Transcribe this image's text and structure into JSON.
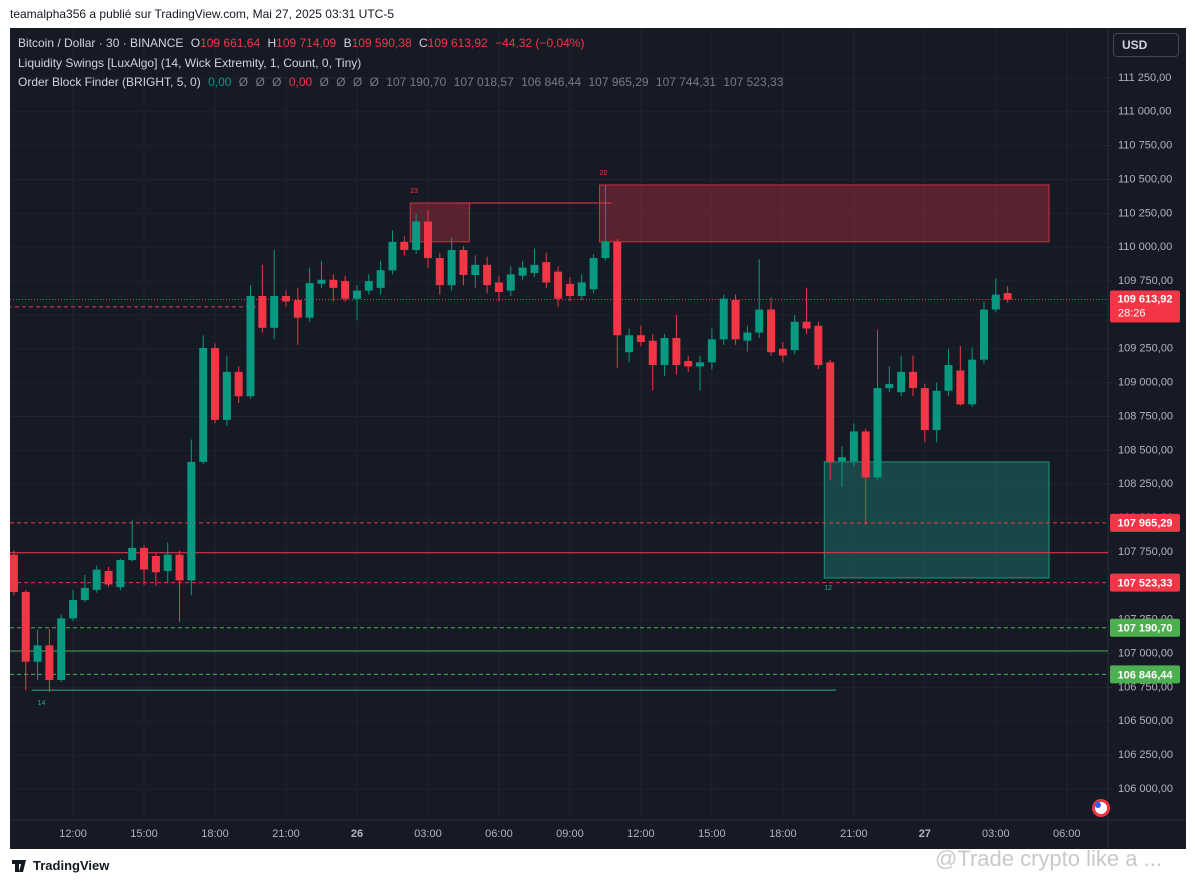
{
  "header": {
    "publisher": "teamalpha356 a publié sur TradingView.com, Mai 27, 2025 03:31 UTC-5",
    "logo": "TradingView",
    "watermark": "@Trade crypto like a ..."
  },
  "chart_data": {
    "type": "candlestick",
    "title": "Bitcoin / Dollar · 30 · BINANCE",
    "ohlc": [
      {
        "key": "O",
        "value": "109 661,64"
      },
      {
        "key": "H",
        "value": "109 714,09"
      },
      {
        "key": "B",
        "value": "109 590,38"
      },
      {
        "key": "C",
        "value": "109 613,92"
      }
    ],
    "change": "−44,32 (−0,04%)",
    "indicators": [
      {
        "name": "Liquidity Swings [LuxAlgo] (14, Wick Extremity, 1, Count, 0, Tiny)"
      },
      {
        "name": "Order Block Finder (BRIGHT, 5, 0)",
        "values": [
          "0,00",
          "Ø",
          "Ø",
          "Ø",
          "0,00",
          "Ø",
          "Ø",
          "Ø",
          "Ø",
          "107 190,70",
          "107 018,57",
          "106 846,44",
          "107 965,29",
          "107 744,31",
          "107 523,33"
        ]
      }
    ],
    "currency": "USD",
    "categories": [
      null,
      null,
      null,
      null,
      null,
      "12:00",
      null,
      null,
      null,
      null,
      null,
      "15:00",
      null,
      null,
      null,
      null,
      null,
      "18:00",
      null,
      null,
      null,
      null,
      null,
      "21:00",
      null,
      null,
      null,
      null,
      null,
      "26",
      null,
      null,
      null,
      null,
      null,
      "03:00",
      null,
      null,
      null,
      null,
      null,
      "06:00",
      null,
      null,
      null,
      null,
      null,
      "09:00",
      null,
      null,
      null,
      null,
      null,
      "12:00",
      null,
      null,
      null,
      null,
      null,
      "15:00",
      null,
      null,
      null,
      null,
      null,
      "18:00",
      null,
      null,
      null,
      null,
      null,
      "21:00",
      null,
      null,
      null,
      null,
      null,
      "27",
      null,
      null,
      null,
      null,
      null,
      "03:00",
      null,
      null,
      null,
      null,
      null,
      "06:00",
      null,
      null,
      null
    ],
    "open": [
      107730,
      107455,
      106940,
      107060,
      106805,
      107260,
      107395,
      107470,
      107610,
      107490,
      107690,
      107780,
      107720,
      107610,
      107730,
      107540,
      108415,
      109256,
      108725,
      109080,
      108900,
      109640,
      109405,
      109640,
      109610,
      109480,
      109730,
      109760,
      109750,
      109620,
      109680,
      109700,
      109830,
      110040,
      109980,
      110190,
      109920,
      109720,
      109980,
      109795,
      109870,
      109740,
      109680,
      109790,
      109810,
      109890,
      109820,
      109730,
      109640,
      109690,
      109920,
      110040,
      109225,
      109350,
      109310,
      109130,
      109330,
      109160,
      109120,
      109150,
      109320,
      109610,
      109310,
      109370,
      109540,
      109250,
      109240,
      109450,
      109420,
      109150,
      108420,
      108420,
      108640,
      108300,
      108960,
      108930,
      109080,
      108960,
      108650,
      108940,
      109090,
      108840,
      109170,
      109540,
      109661.64,
      null,
      null,
      null,
      null,
      null,
      null,
      null,
      null
    ],
    "high": [
      107760,
      107470,
      107175,
      107180,
      107290,
      107470,
      107580,
      107650,
      107640,
      107700,
      107985,
      107800,
      107740,
      107820,
      107760,
      108580,
      109350,
      109290,
      109200,
      109120,
      109720,
      109870,
      109980,
      109680,
      109700,
      109850,
      109900,
      109800,
      109790,
      109720,
      109800,
      109900,
      110125,
      110080,
      110250,
      110275,
      109960,
      110070,
      110010,
      109940,
      109930,
      109790,
      109860,
      109900,
      109990,
      109960,
      109860,
      109780,
      109800,
      109950,
      110460,
      110060,
      109400,
      109420,
      109360,
      109360,
      109500,
      109200,
      109200,
      109400,
      109650,
      109650,
      109420,
      109910,
      109630,
      109300,
      109500,
      109700,
      109450,
      109170,
      108530,
      108700,
      108660,
      109390,
      109120,
      109200,
      109200,
      108990,
      109000,
      109250,
      109270,
      109260,
      109600,
      109770,
      109714.09,
      null,
      null,
      null,
      null,
      null,
      null,
      null,
      null
    ],
    "low": [
      107430,
      106730,
      106805,
      106715,
      106790,
      107240,
      107380,
      107450,
      107490,
      107470,
      107680,
      107506,
      107500,
      107520,
      107233,
      107430,
      108400,
      108700,
      108680,
      108850,
      108880,
      109370,
      109320,
      109560,
      109280,
      109450,
      109700,
      109600,
      109600,
      109460,
      109650,
      109650,
      109800,
      109940,
      109950,
      109850,
      109650,
      109680,
      109720,
      109700,
      109660,
      109600,
      109640,
      109760,
      109780,
      109700,
      109560,
      109600,
      109610,
      109660,
      109900,
      109110,
      109150,
      109270,
      108945,
      109050,
      109060,
      109080,
      108940,
      109100,
      109280,
      109280,
      109230,
      109330,
      109200,
      109150,
      109210,
      109360,
      109100,
      108280,
      108230,
      108380,
      107950,
      108280,
      108930,
      108900,
      108900,
      108560,
      108560,
      108900,
      108830,
      108820,
      109140,
      109520,
      109590.38,
      null,
      null,
      null,
      null,
      null,
      null,
      null,
      null
    ],
    "close": [
      107455,
      106940,
      107060,
      106805,
      107260,
      107395,
      107485,
      107620,
      107510,
      107690,
      107780,
      107620,
      107600,
      107730,
      107540,
      108415,
      109256,
      108725,
      109080,
      108900,
      109640,
      109405,
      109640,
      109600,
      109480,
      109735,
      109760,
      109700,
      109620,
      109680,
      109750,
      109830,
      110040,
      109980,
      110190,
      109920,
      109720,
      109980,
      109795,
      109870,
      109720,
      109670,
      109800,
      109850,
      109870,
      109740,
      109620,
      109640,
      109740,
      109920,
      110040,
      109350,
      109350,
      109300,
      109130,
      109330,
      109130,
      109120,
      109150,
      109320,
      109620,
      109320,
      109370,
      109540,
      109225,
      109200,
      109450,
      109400,
      109130,
      108415,
      108450,
      108640,
      108300,
      108960,
      108990,
      109080,
      108960,
      108650,
      108940,
      109130,
      108840,
      109170,
      109540,
      109650,
      109613.92,
      null,
      null,
      null,
      null,
      null,
      null,
      null,
      null
    ],
    "up_color": "#089981",
    "down_color": "#f23645",
    "ylim": [
      105771,
      111604
    ],
    "yticks": [
      {
        "value": 111250,
        "label": "111 250,00"
      },
      {
        "value": 111000,
        "label": "111 000,00"
      },
      {
        "value": 110750,
        "label": "110 750,00"
      },
      {
        "value": 110500,
        "label": "110 500,00"
      },
      {
        "value": 110250,
        "label": "110 250,00"
      },
      {
        "value": 110000,
        "label": "110 000,00"
      },
      {
        "value": 109750,
        "label": "109 750,00"
      },
      {
        "value": 109500,
        "label": "109 500,00"
      },
      {
        "value": 109250,
        "label": "109 250,00"
      },
      {
        "value": 109000,
        "label": "109 000,00"
      },
      {
        "value": 108750,
        "label": "108 750,00"
      },
      {
        "value": 108500,
        "label": "108 500,00"
      },
      {
        "value": 108250,
        "label": "108 250,00"
      },
      {
        "value": 108000,
        "label": "108 000,00"
      },
      {
        "value": 107750,
        "label": "107 750,00"
      },
      {
        "value": 107500,
        "label": "107 500,00"
      },
      {
        "value": 107250,
        "label": "107 250,00"
      },
      {
        "value": 107000,
        "label": "107 000,00"
      },
      {
        "value": 106750,
        "label": "106 750,00"
      },
      {
        "value": 106500,
        "label": "106 500,00"
      },
      {
        "value": 106250,
        "label": "106 250,00"
      },
      {
        "value": 106000,
        "label": "106 000,00"
      }
    ],
    "grid": true,
    "zones": [
      {
        "label": "23",
        "from": 34,
        "to": 38,
        "top": 110327,
        "bottom": 110040,
        "color": "#f23645",
        "label_pos": "above"
      },
      {
        "label": "20",
        "from": 50,
        "to": 87,
        "top": 110460,
        "bottom": 110040,
        "color": "#f23645",
        "label_pos": "above"
      },
      {
        "label": "12",
        "from": 69,
        "to": 87,
        "top": 108415,
        "bottom": 107558,
        "color": "#22ab94",
        "label_pos": "below"
      }
    ],
    "swing_lines": [
      {
        "value": 110327,
        "from": 38,
        "to": 50,
        "color": "#f23645",
        "style": "solid"
      },
      {
        "value": 109560,
        "from": 0,
        "to": 20,
        "color": "#f23645",
        "style": "dashed"
      },
      {
        "value": 106730,
        "from": 2,
        "to": 69,
        "color": "#22ab94",
        "style": "solid",
        "label": "14"
      }
    ],
    "levels": [
      {
        "value": 107965.29,
        "label": "107 965,29",
        "color": "#f23645",
        "style": "dashed"
      },
      {
        "value": 107744.31,
        "color": "#f23645",
        "style": "solid"
      },
      {
        "value": 107523.33,
        "label": "107 523,33",
        "color": "#f23645",
        "style": "dashed"
      },
      {
        "value": 107190.7,
        "label": "107 190,70",
        "color": "#4caf50",
        "style": "dashed"
      },
      {
        "value": 107018.57,
        "color": "#4caf50",
        "style": "solid"
      },
      {
        "value": 106846.44,
        "label": "106 846,44",
        "color": "#4caf50",
        "style": "dashed"
      }
    ],
    "last_price": {
      "label": "109 613,92",
      "countdown": "28:26",
      "color": "#f23645"
    }
  }
}
